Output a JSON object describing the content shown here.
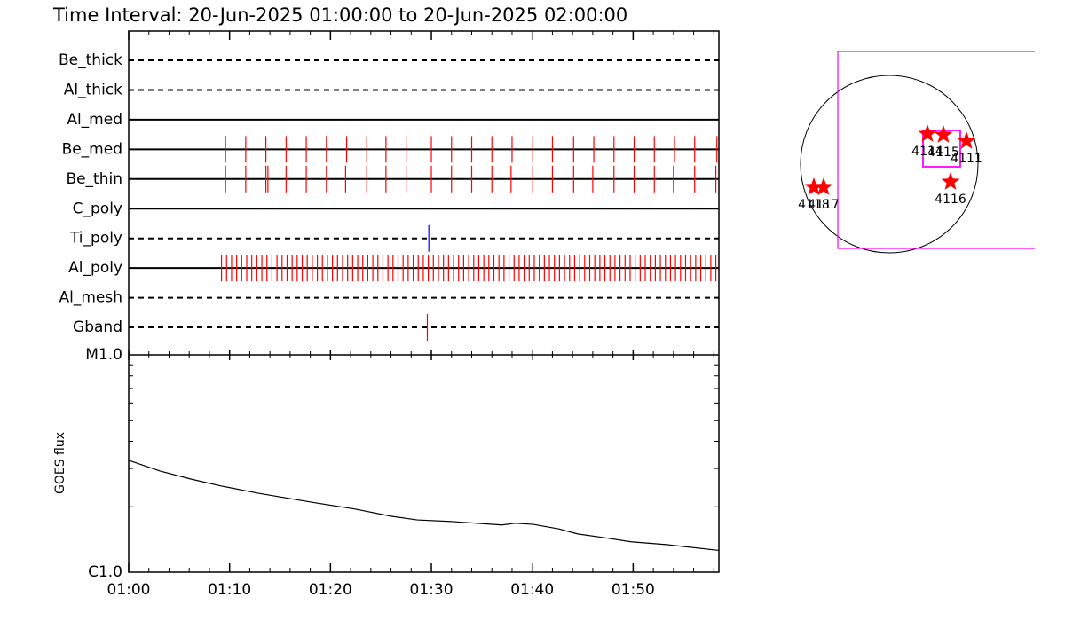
{
  "chart_data": [
    {
      "type": "event",
      "title": "Time Interval: 20-Jun-2025 01:00:00 to 20-Jun-2025 02:00:00",
      "xlim": [
        0,
        58.5
      ],
      "rows": [
        {
          "name": "Be_thick",
          "style": "dashed",
          "color": "#ff0000",
          "events": []
        },
        {
          "name": "Al_thick",
          "style": "dashed",
          "color": "#ff0000",
          "events": []
        },
        {
          "name": "Al_med",
          "style": "solid",
          "color": "#ff0000",
          "events": []
        },
        {
          "name": "Be_med",
          "style": "solid",
          "color": "#ff0000",
          "events": [
            9.6,
            11.6,
            13.6,
            15.6,
            17.6,
            19.6,
            21.6,
            23.6,
            25.5,
            27.5,
            30.0,
            32.0,
            34.0,
            36.0,
            38.0,
            40.0,
            42.0,
            44.1,
            46.1,
            48.1,
            50.1,
            52.1,
            54.1,
            56.1,
            58.3
          ]
        },
        {
          "name": "Be_thin",
          "style": "solid",
          "color": "#ff0000",
          "events": [
            9.6,
            11.6,
            13.6,
            13.8,
            15.6,
            17.6,
            19.6,
            21.5,
            23.6,
            25.5,
            27.5,
            30.0,
            32.0,
            34.0,
            36.0,
            37.9,
            40.0,
            42.0,
            44.1,
            46.0,
            48.1,
            50.1,
            52.1,
            54.0,
            56.1,
            58.2
          ]
        },
        {
          "name": "C_poly",
          "style": "solid",
          "color": "#ff0000",
          "events": []
        },
        {
          "name": "Ti_poly",
          "style": "dashed",
          "color": "#0000ff",
          "events": [
            29.75
          ]
        },
        {
          "name": "Al_poly",
          "style": "solid",
          "color": "#ff0000",
          "events": [
            9.2,
            9.7,
            10.2,
            10.7,
            11.2,
            11.7,
            12.2,
            12.7,
            13.2,
            13.7,
            14.2,
            14.7,
            15.2,
            15.7,
            16.2,
            16.7,
            17.2,
            17.7,
            18.2,
            18.7,
            19.2,
            19.7,
            20.2,
            20.7,
            21.2,
            21.7,
            22.2,
            22.7,
            23.2,
            23.7,
            24.2,
            24.7,
            25.2,
            25.7,
            26.2,
            26.7,
            27.2,
            27.7,
            28.2,
            28.7,
            29.2,
            29.7,
            30.2,
            30.7,
            31.2,
            31.7,
            32.2,
            32.7,
            33.2,
            33.7,
            34.2,
            34.7,
            35.2,
            35.7,
            36.2,
            36.7,
            37.2,
            37.7,
            38.2,
            38.7,
            39.2,
            39.7,
            40.2,
            40.7,
            41.2,
            41.7,
            42.2,
            42.7,
            43.2,
            43.7,
            44.2,
            44.7,
            45.2,
            45.7,
            46.2,
            46.7,
            47.2,
            47.7,
            48.2,
            48.7,
            49.2,
            49.7,
            50.2,
            50.7,
            51.2,
            51.7,
            52.2,
            52.7,
            53.2,
            53.7,
            54.2,
            54.7,
            55.2,
            55.7,
            56.2,
            56.7,
            57.2,
            57.7,
            58.2
          ]
        },
        {
          "name": "Al_mesh",
          "style": "dashed",
          "color": "#ff0000",
          "events": []
        },
        {
          "name": "Gband",
          "style": "dashed",
          "color": "#ff0000",
          "events": [
            29.6
          ]
        }
      ]
    },
    {
      "type": "line",
      "ylabel": "GOES flux",
      "color": "#000000",
      "log": true,
      "x": [
        0,
        3.1,
        6.2,
        9.2,
        12.8,
        18.1,
        22.5,
        26.0,
        28.6,
        32.1,
        37.0,
        38.3,
        40.1,
        42.7,
        44.5,
        47.2,
        49.8,
        53.3,
        58.5
      ],
      "values": [
        3.27e-06,
        2.92e-06,
        2.68e-06,
        2.49e-06,
        2.31e-06,
        2.1e-06,
        1.95e-06,
        1.81e-06,
        1.74e-06,
        1.71e-06,
        1.65e-06,
        1.68e-06,
        1.66e-06,
        1.58e-06,
        1.5e-06,
        1.44e-06,
        1.38e-06,
        1.34e-06,
        1.26e-06
      ],
      "xlim": [
        0,
        58.5
      ],
      "xticks": [
        {
          "value": 0,
          "label": "01:00"
        },
        {
          "value": 10,
          "label": "01:10"
        },
        {
          "value": 20,
          "label": "01:20"
        },
        {
          "value": 30,
          "label": "01:30"
        },
        {
          "value": 40,
          "label": "01:40"
        },
        {
          "value": 50,
          "label": "01:50"
        }
      ],
      "xminorticks": [
        2,
        4,
        6,
        8,
        12,
        14,
        16,
        18,
        22,
        24,
        26,
        28,
        32,
        34,
        36,
        38,
        42,
        44,
        46,
        48,
        52,
        54,
        56,
        58
      ],
      "ylim": [
        1e-06,
        1e-05
      ],
      "yticks": [
        {
          "value": 1e-06,
          "label": "C1.0"
        },
        {
          "value": 1e-05,
          "label": "M1.0"
        }
      ],
      "yminorticks": [
        2e-06,
        3e-06,
        4e-06,
        5e-06,
        6e-06,
        7e-06,
        8e-06,
        9e-06
      ]
    },
    {
      "type": "map",
      "color": "#ff0000",
      "regions": [
        "4114",
        "4115",
        "4111",
        "4116",
        "4118",
        "4117"
      ]
    }
  ]
}
